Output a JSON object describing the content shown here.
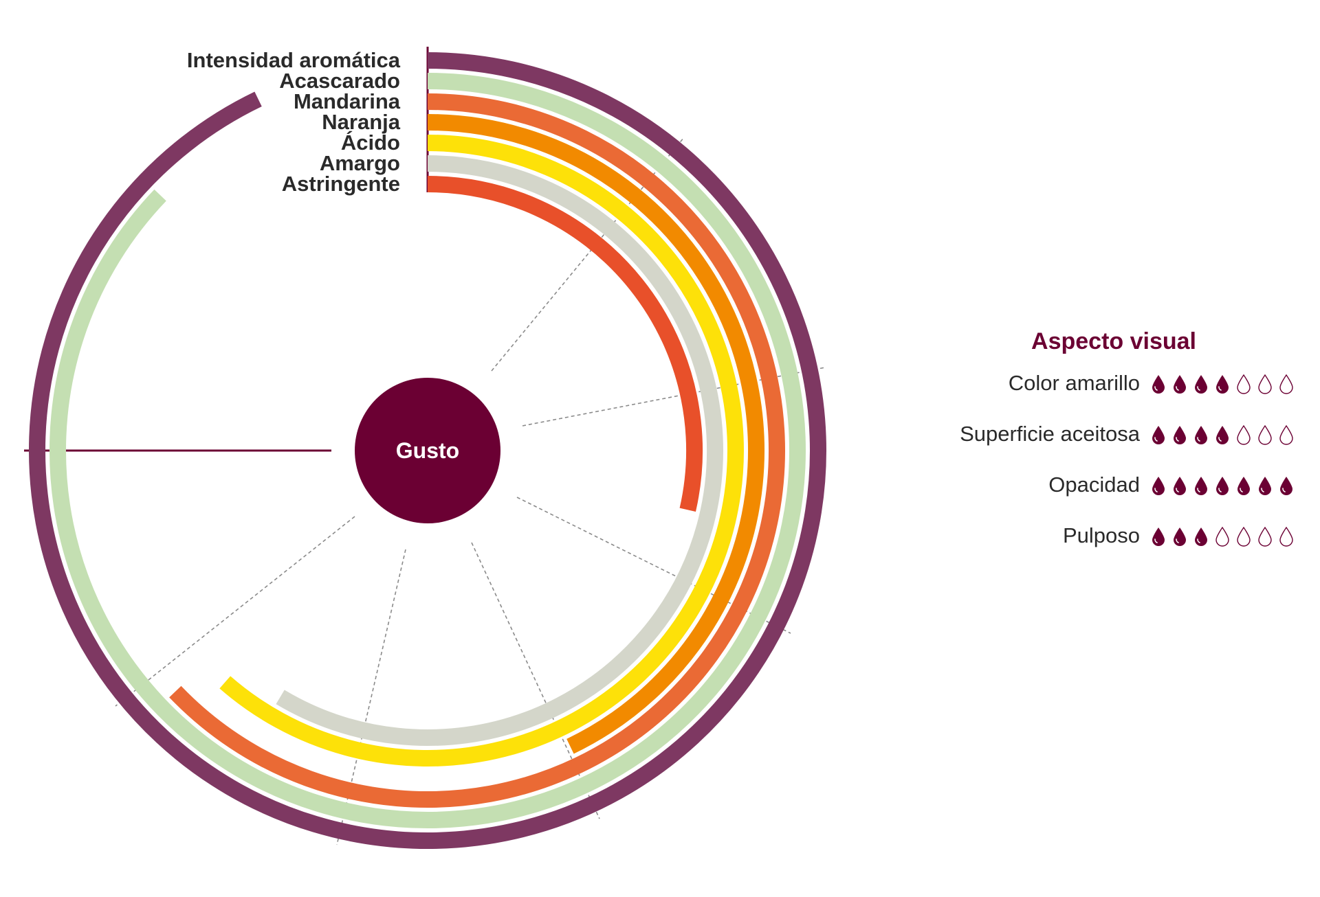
{
  "chart_data": {
    "type": "radial-bar",
    "center_label": "Gusto",
    "max_value": 7,
    "categories": [
      "Intensidad aromática",
      "Acascarado",
      "Mandarina",
      "Naranja",
      "Ácido",
      "Amargo",
      "Astringente"
    ],
    "values": [
      6.5,
      6.1,
      4.4,
      3.0,
      4.3,
      4.1,
      2.0
    ],
    "colors": [
      "#7e3862",
      "#c4dfb2",
      "#ea6a35",
      "#f28a00",
      "#fde109",
      "#d4d6ca",
      "#e8502a"
    ]
  },
  "aspecto_visual": {
    "title": "Aspecto visual",
    "max": 7,
    "items": [
      {
        "label": "Color amarillo",
        "value": 4
      },
      {
        "label": "Superficie aceitosa",
        "value": 4
      },
      {
        "label": "Opacidad",
        "value": 7
      },
      {
        "label": "Pulposo",
        "value": 3
      }
    ]
  },
  "colors": {
    "accent": "#6b0033",
    "dashed": "#8a8a8a",
    "text": "#2a2a2a"
  }
}
